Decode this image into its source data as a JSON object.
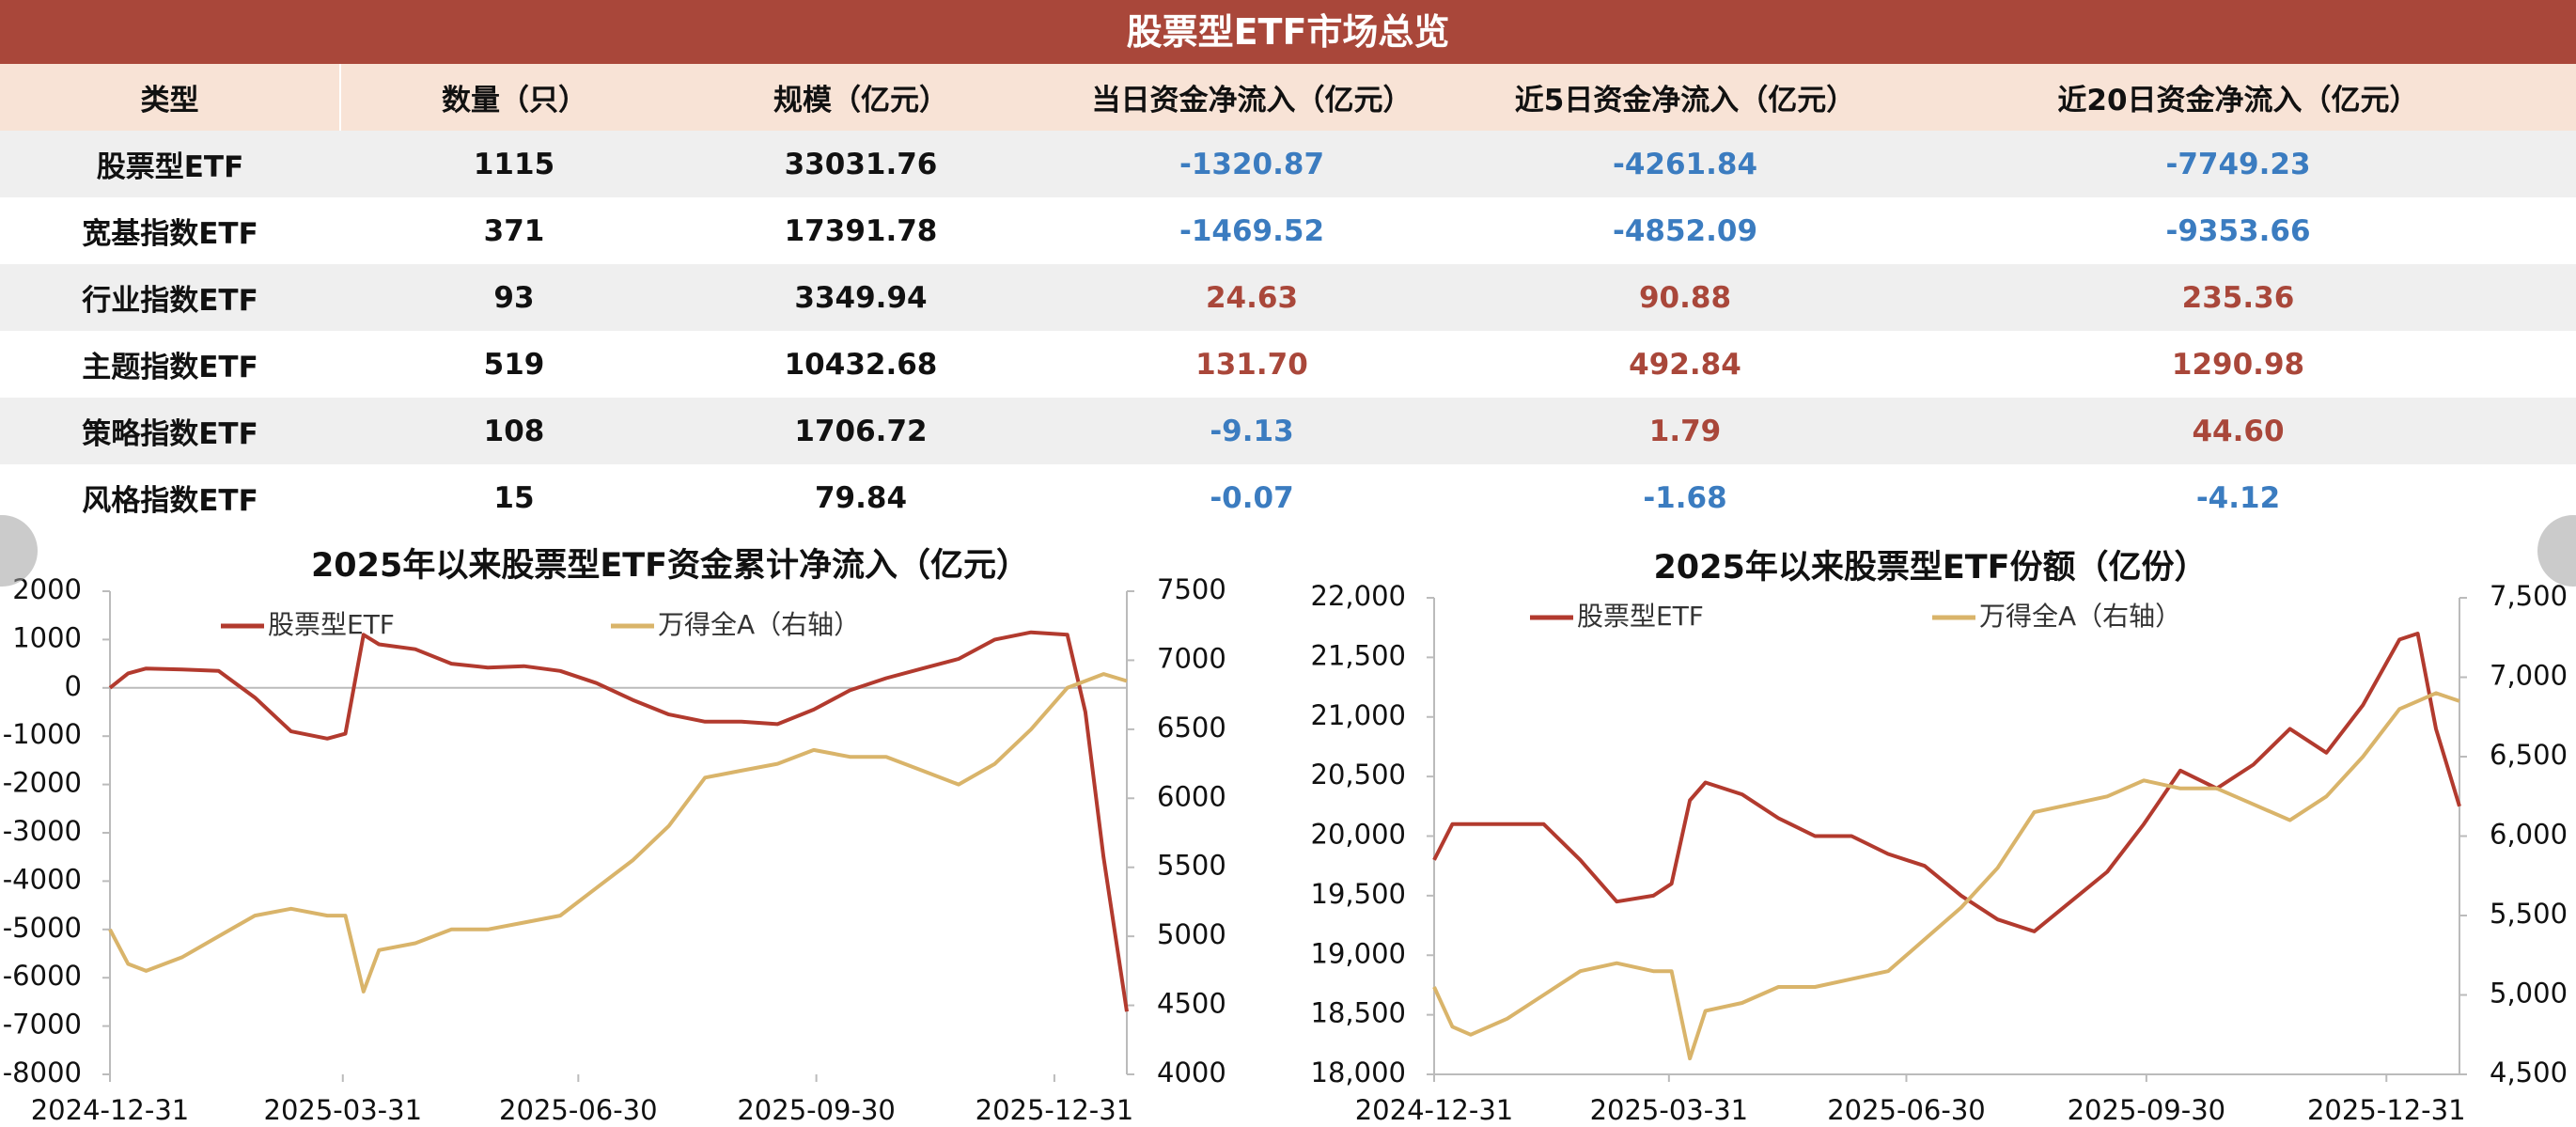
{
  "header": {
    "title": "股票型ETF市场总览"
  },
  "table": {
    "columns": [
      "类型",
      "数量（只）",
      "规模（亿元）",
      "当日资金净流入（亿元）",
      "近5日资金净流入（亿元）",
      "近20日资金净流入（亿元）"
    ],
    "rows": [
      [
        "股票型ETF",
        "1115",
        "33031.76",
        "-1320.87",
        "-4261.84",
        "-7749.23"
      ],
      [
        "宽基指数ETF",
        "371",
        "17391.78",
        "-1469.52",
        "-4852.09",
        "-9353.66"
      ],
      [
        "行业指数ETF",
        "93",
        "3349.94",
        "24.63",
        "90.88",
        "235.36"
      ],
      [
        "主题指数ETF",
        "519",
        "10432.68",
        "131.70",
        "492.84",
        "1290.98"
      ],
      [
        "策略指数ETF",
        "108",
        "1706.72",
        "-9.13",
        "1.79",
        "44.60"
      ],
      [
        "风格指数ETF",
        "15",
        "79.84",
        "-0.07",
        "-1.68",
        "-4.12"
      ]
    ]
  },
  "chart_data": [
    {
      "type": "line",
      "title": "2025年以来股票型ETF资金累计净流入（亿元）",
      "legend": "top",
      "x": [
        "2024-12-31",
        "2025-01-07",
        "2025-01-14",
        "2025-01-28",
        "2025-02-11",
        "2025-02-25",
        "2025-03-11",
        "2025-03-25",
        "2025-04-01",
        "2025-04-08",
        "2025-04-14",
        "2025-04-28",
        "2025-05-12",
        "2025-05-26",
        "2025-06-09",
        "2025-06-23",
        "2025-07-07",
        "2025-07-21",
        "2025-08-04",
        "2025-08-18",
        "2025-09-01",
        "2025-09-15",
        "2025-09-29",
        "2025-10-13",
        "2025-10-27",
        "2025-11-10",
        "2025-11-24",
        "2025-12-08",
        "2025-12-22",
        "2026-01-05",
        "2026-01-12",
        "2026-01-19",
        "2026-01-28"
      ],
      "series": [
        {
          "name": "股票型ETF",
          "color": "#b23a2e",
          "values": [
            0,
            300,
            400,
            380,
            350,
            -200,
            -900,
            -1050,
            -950,
            1100,
            900,
            800,
            500,
            420,
            450,
            350,
            100,
            -250,
            -550,
            -700,
            -700,
            -750,
            -450,
            -50,
            200,
            400,
            600,
            1000,
            1150,
            1100,
            -500,
            -3500,
            -6700
          ]
        },
        {
          "name": "万得全A（右轴）",
          "color": "#d9b46a",
          "axis": "y2",
          "values": [
            5050,
            4800,
            4750,
            4850,
            5000,
            5150,
            5200,
            5150,
            5150,
            4600,
            4900,
            4950,
            5050,
            5050,
            5100,
            5150,
            5350,
            5550,
            5800,
            6150,
            6200,
            6250,
            6350,
            6300,
            6300,
            6200,
            6100,
            6250,
            6500,
            6800,
            6850,
            6900,
            6850
          ]
        }
      ],
      "xlim": [
        "2024-12-31",
        "2026-01-28"
      ],
      "xticks": [
        "2024-12-31",
        "2025-03-31",
        "2025-06-30",
        "2025-09-30",
        "2025-12-31"
      ],
      "ylim": [
        -8000,
        2000
      ],
      "yticks": [
        -8000,
        -7000,
        -6000,
        -5000,
        -4000,
        -3000,
        -2000,
        -1000,
        0,
        1000,
        2000
      ],
      "y2lim": [
        4000,
        7500
      ],
      "y2ticks": [
        4000,
        4500,
        5000,
        5500,
        6000,
        6500,
        7000,
        7500
      ]
    },
    {
      "type": "line",
      "title": "2025年以来股票型ETF份额（亿份）",
      "legend": "top",
      "x": [
        "2024-12-31",
        "2025-01-07",
        "2025-01-14",
        "2025-01-28",
        "2025-02-11",
        "2025-02-25",
        "2025-03-11",
        "2025-03-25",
        "2025-04-01",
        "2025-04-08",
        "2025-04-14",
        "2025-04-28",
        "2025-05-12",
        "2025-05-26",
        "2025-06-09",
        "2025-06-23",
        "2025-07-07",
        "2025-07-21",
        "2025-08-04",
        "2025-08-18",
        "2025-09-01",
        "2025-09-15",
        "2025-09-29",
        "2025-10-13",
        "2025-10-27",
        "2025-11-10",
        "2025-11-24",
        "2025-12-08",
        "2025-12-22",
        "2026-01-05",
        "2026-01-12",
        "2026-01-19",
        "2026-01-28"
      ],
      "series": [
        {
          "name": "股票型ETF",
          "color": "#b23a2e",
          "values": [
            19800,
            20100,
            20100,
            20100,
            20100,
            19800,
            19450,
            19500,
            19600,
            20300,
            20450,
            20350,
            20150,
            20000,
            20000,
            19850,
            19750,
            19500,
            19300,
            19200,
            19450,
            19700,
            20100,
            20550,
            20400,
            20600,
            20900,
            20700,
            21100,
            21650,
            21700,
            20900,
            20250
          ]
        },
        {
          "name": "万得全A（右轴）",
          "color": "#d9b46a",
          "axis": "y2",
          "values": [
            5050,
            4800,
            4750,
            4850,
            5000,
            5150,
            5200,
            5150,
            5150,
            4600,
            4900,
            4950,
            5050,
            5050,
            5100,
            5150,
            5350,
            5550,
            5800,
            6150,
            6200,
            6250,
            6350,
            6300,
            6300,
            6200,
            6100,
            6250,
            6500,
            6800,
            6850,
            6900,
            6850
          ]
        }
      ],
      "xlim": [
        "2024-12-31",
        "2026-01-28"
      ],
      "xticks": [
        "2024-12-31",
        "2025-03-31",
        "2025-06-30",
        "2025-09-30",
        "2025-12-31"
      ],
      "ylim": [
        18000,
        22000
      ],
      "yticks": [
        {
          "value": 18000,
          "label": "18,000"
        },
        {
          "value": 18500,
          "label": "18,500"
        },
        {
          "value": 19000,
          "label": "19,000"
        },
        {
          "value": 19500,
          "label": "19,500"
        },
        {
          "value": 20000,
          "label": "20,000"
        },
        {
          "value": 20500,
          "label": "20,500"
        },
        {
          "value": 21000,
          "label": "21,000"
        },
        {
          "value": 21500,
          "label": "21,500"
        },
        {
          "value": 22000,
          "label": "22,000"
        }
      ],
      "y2lim": [
        4500,
        7500
      ],
      "y2ticks": [
        {
          "value": 4500,
          "label": "4,500"
        },
        {
          "value": 5000,
          "label": "5,000"
        },
        {
          "value": 5500,
          "label": "5,500"
        },
        {
          "value": 6000,
          "label": "6,000"
        },
        {
          "value": 6500,
          "label": "6,500"
        },
        {
          "value": 7000,
          "label": "7,000"
        },
        {
          "value": 7500,
          "label": "7,500"
        }
      ]
    }
  ]
}
